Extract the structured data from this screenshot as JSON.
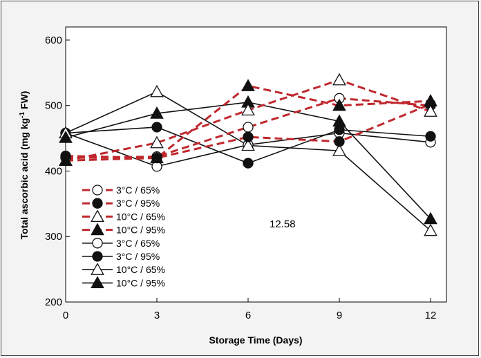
{
  "chart_data": {
    "type": "line",
    "xlabel": "Storage Time (Days)",
    "ylabel_main": "Total ascorbic acid (mg kg",
    "ylabel_sup": "-1",
    "ylabel_end": " FW)",
    "x_ticks": [
      0,
      3,
      6,
      9,
      12
    ],
    "y_ticks": [
      200,
      300,
      400,
      500,
      600
    ],
    "xlim": [
      0,
      12
    ],
    "ylim": [
      200,
      620
    ],
    "annotation": "12.58",
    "series": [
      {
        "name": "3°C / 65%",
        "color": "#c0282d",
        "dash": true,
        "marker": "circle-open",
        "x": [
          0,
          3,
          6,
          9,
          12
        ],
        "y": [
          420,
          422,
          467,
          511,
          500
        ]
      },
      {
        "name": "3°C / 95%",
        "color": "#c0282d",
        "dash": true,
        "marker": "circle-filled",
        "x": [
          0,
          3,
          6,
          9,
          12
        ],
        "y": [
          423,
          420,
          452,
          445,
          502
        ]
      },
      {
        "name": "10°C / 65%",
        "color": "#c0282d",
        "dash": true,
        "marker": "tri-open",
        "x": [
          0,
          3,
          6,
          9,
          12
        ],
        "y": [
          416,
          443,
          493,
          539,
          491
        ]
      },
      {
        "name": "10°C / 95%",
        "color": "#c0282d",
        "dash": true,
        "marker": "tri-filled",
        "x": [
          0,
          3,
          6,
          9,
          12
        ],
        "y": [
          416,
          420,
          530,
          500,
          507
        ]
      },
      {
        "name": "3°C / 65%",
        "color": "#111111",
        "dash": false,
        "marker": "circle-open",
        "x": [
          0,
          3,
          6,
          9,
          12
        ],
        "y": [
          458,
          407,
          440,
          458,
          444
        ]
      },
      {
        "name": "3°C / 95%",
        "color": "#111111",
        "dash": false,
        "marker": "circle-filled",
        "x": [
          0,
          3,
          6,
          9,
          12
        ],
        "y": [
          458,
          467,
          412,
          463,
          453
        ]
      },
      {
        "name": "10°C / 65%",
        "color": "#111111",
        "dash": false,
        "marker": "tri-open",
        "x": [
          0,
          3,
          6,
          9,
          12
        ],
        "y": [
          458,
          521,
          439,
          431,
          309
        ]
      },
      {
        "name": "10°C / 95%",
        "color": "#111111",
        "dash": false,
        "marker": "tri-filled",
        "x": [
          0,
          3,
          6,
          9,
          12
        ],
        "y": [
          451,
          488,
          505,
          476,
          327
        ]
      }
    ]
  }
}
